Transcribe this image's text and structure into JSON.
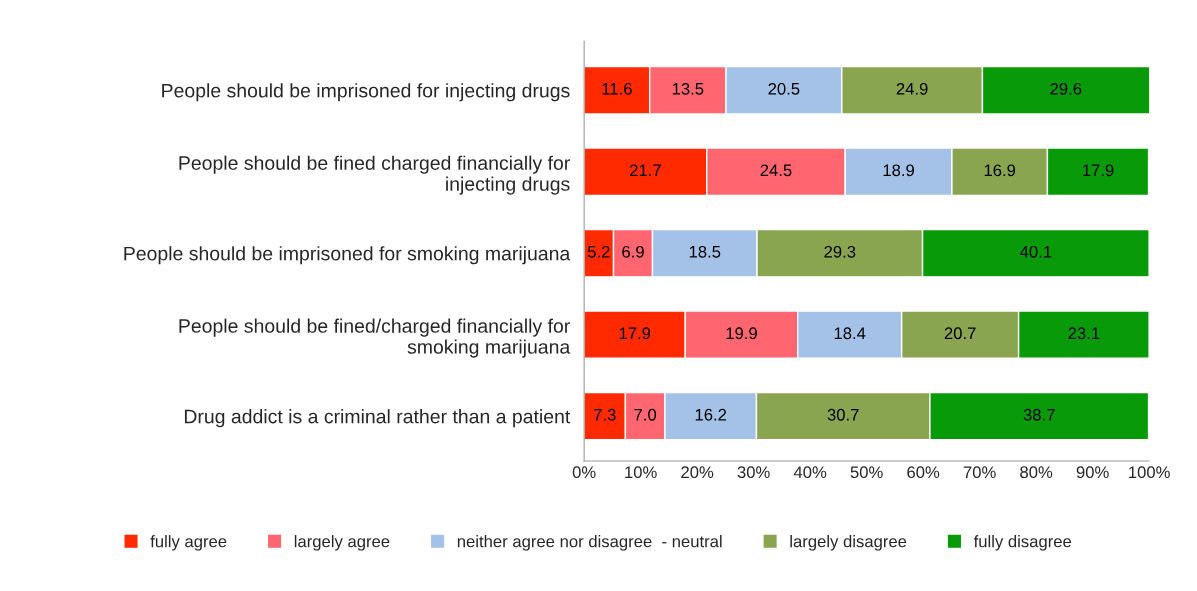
{
  "chart_data": {
    "type": "bar",
    "orientation": "horizontal",
    "stacked": true,
    "categories": [
      "People should be imprisoned for injecting drugs",
      "People should be fined charged financially for injecting drugs",
      "People should be imprisoned for smoking marijuana",
      "People should be fined/charged financially for smoking marijuana",
      "Drug addict is a criminal rather than a patient"
    ],
    "series": [
      {
        "name": "fully agree",
        "color": "#ff2a00",
        "values": [
          11.6,
          21.7,
          5.2,
          17.9,
          7.3
        ],
        "value_labels": [
          "11.6",
          "21.7",
          "5.2",
          "17.9",
          "7.3"
        ]
      },
      {
        "name": "largely agree",
        "color": "#ff6670",
        "values": [
          13.5,
          24.5,
          6.9,
          19.9,
          7.0
        ],
        "value_labels": [
          "13.5",
          "24.5",
          "6.9",
          "19.9",
          "7.0"
        ]
      },
      {
        "name": "neither agree nor disagree  - neutral",
        "color": "#a4c2e8",
        "values": [
          20.5,
          18.9,
          18.5,
          18.4,
          16.2
        ],
        "value_labels": [
          "20.5",
          "18.9",
          "18.5",
          "18.4",
          "16.2"
        ]
      },
      {
        "name": "largely disagree",
        "color": "#8aa550",
        "values": [
          24.9,
          16.9,
          29.3,
          20.7,
          30.7
        ],
        "value_labels": [
          "24.9",
          "16.9",
          "29.3",
          "20.7",
          "30.7"
        ]
      },
      {
        "name": "fully disagree",
        "color": "#089a09",
        "values": [
          29.6,
          17.9,
          40.1,
          23.1,
          38.7
        ],
        "value_labels": [
          "29.6",
          "17.9",
          "40.1",
          "23.1",
          "38.7"
        ]
      }
    ],
    "xlim": [
      0,
      100
    ],
    "xticks": [
      {
        "value": 0,
        "label": "0%"
      },
      {
        "value": 10,
        "label": "10%"
      },
      {
        "value": 20,
        "label": "20%"
      },
      {
        "value": 30,
        "label": "30%"
      },
      {
        "value": 40,
        "label": "40%"
      },
      {
        "value": 50,
        "label": "50%"
      },
      {
        "value": 60,
        "label": "60%"
      },
      {
        "value": 70,
        "label": "70%"
      },
      {
        "value": 80,
        "label": "80%"
      },
      {
        "value": 90,
        "label": "90%"
      },
      {
        "value": 100,
        "label": "100%"
      }
    ],
    "grid": false,
    "legend": "bottom"
  }
}
